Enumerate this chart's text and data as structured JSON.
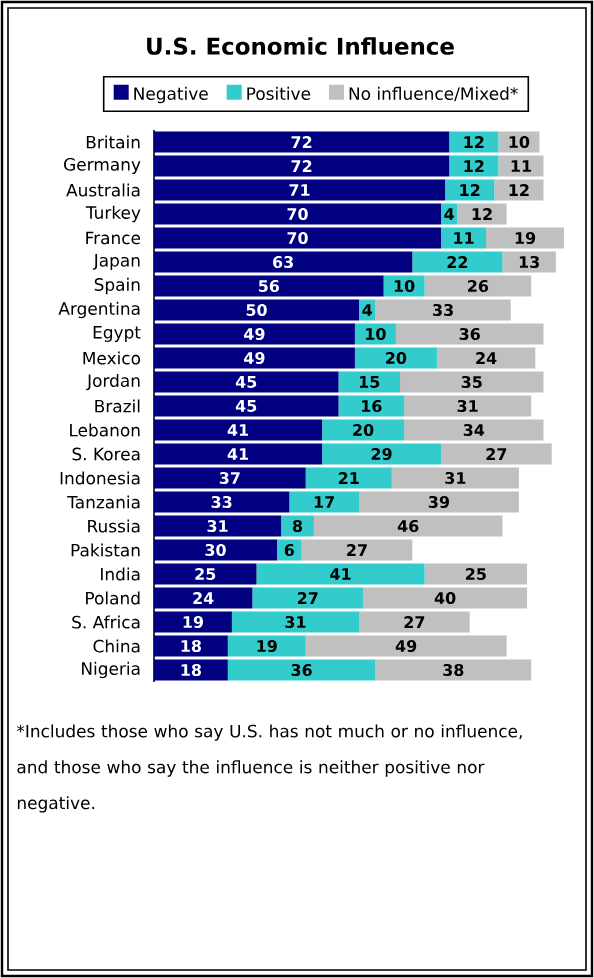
{
  "chart_data": {
    "type": "bar",
    "orientation": "horizontal",
    "stacked": true,
    "data_labels": true,
    "legend": "top",
    "title": "U.S. Economic Influence",
    "categories": [
      "Britain",
      "Germany",
      "Australia",
      "Turkey",
      "France",
      "Japan",
      "Spain",
      "Argentina",
      "Egypt",
      "Mexico",
      "Jordan",
      "Brazil",
      "Lebanon",
      "S. Korea",
      "Indonesia",
      "Tanzania",
      "Russia",
      "Pakistan",
      "India",
      "Poland",
      "S. Africa",
      "China",
      "Nigeria"
    ],
    "series": [
      {
        "name": "Negative",
        "color": "#000080",
        "values": [
          72,
          72,
          71,
          70,
          70,
          63,
          56,
          50,
          49,
          49,
          45,
          45,
          41,
          41,
          37,
          33,
          31,
          30,
          25,
          24,
          19,
          18,
          18
        ]
      },
      {
        "name": "Positive",
        "color": "#33cccc",
        "values": [
          12,
          12,
          12,
          4,
          11,
          22,
          10,
          4,
          10,
          20,
          15,
          16,
          20,
          29,
          21,
          17,
          8,
          6,
          41,
          27,
          31,
          19,
          36
        ]
      },
      {
        "name": "No influence/Mixed*",
        "color": "#c0c0c0",
        "values": [
          10,
          11,
          12,
          12,
          19,
          13,
          26,
          33,
          36,
          24,
          35,
          31,
          34,
          27,
          31,
          39,
          46,
          27,
          25,
          40,
          27,
          49,
          38
        ]
      }
    ],
    "annotations": [
      "*Includes those who say U.S. has not much or no influence, and those who say the influence is neither positive nor negative."
    ]
  }
}
